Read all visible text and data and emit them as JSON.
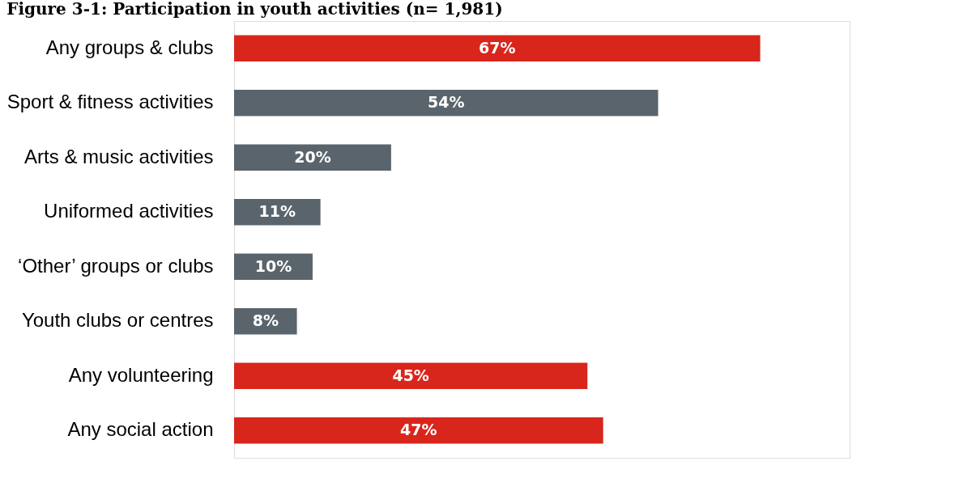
{
  "chart_data": {
    "type": "bar",
    "orientation": "horizontal",
    "title": "Figure 3-1: Participation in youth activities (n= 1,981)",
    "categories": [
      "Any groups & clubs",
      "Sport & fitness activities",
      "Arts & music activities",
      "Uniformed activities",
      "‘Other’ groups  or clubs",
      "Youth clubs or centres",
      "Any volunteering",
      "Any social action"
    ],
    "values": [
      67,
      54,
      20,
      11,
      10,
      8,
      45,
      47
    ],
    "colors": [
      "#d9261c",
      "#5a646c",
      "#5a646c",
      "#5a646c",
      "#5a646c",
      "#5a646c",
      "#d9261c",
      "#d9261c"
    ],
    "value_labels": [
      "67%",
      "54%",
      "20%",
      "11%",
      "10%",
      "8%",
      "45%",
      "47%"
    ],
    "tick_labels": "y"
  }
}
